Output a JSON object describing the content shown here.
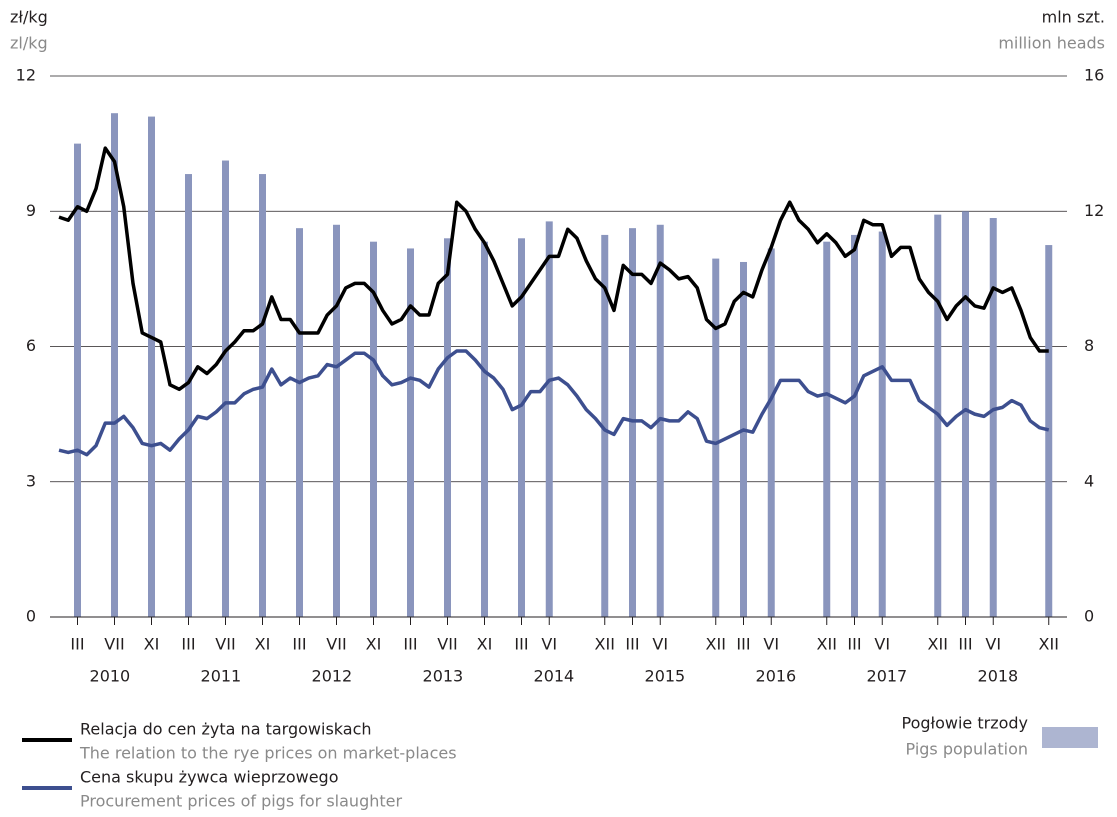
{
  "chart_data": {
    "type": "combo",
    "y_unit": "zł/kg",
    "y_unit_en": "zl/kg",
    "y2_unit": "mln szt.",
    "y2_unit_en": "million heads",
    "categories": [
      null,
      null,
      "III",
      null,
      null,
      null,
      "VII",
      null,
      null,
      null,
      "XI",
      null,
      null,
      null,
      "III",
      null,
      null,
      null,
      "VII",
      null,
      null,
      null,
      "XI",
      null,
      null,
      null,
      "III",
      null,
      null,
      null,
      "VII",
      null,
      null,
      null,
      "XI",
      null,
      null,
      null,
      "III",
      null,
      null,
      null,
      "VII",
      null,
      null,
      null,
      "XI",
      null,
      null,
      null,
      "III",
      null,
      null,
      "VI",
      null,
      null,
      null,
      null,
      null,
      "XII",
      null,
      null,
      "III",
      null,
      null,
      "VI",
      null,
      null,
      null,
      null,
      null,
      "XII",
      null,
      null,
      "III",
      null,
      null,
      "VI",
      null,
      null,
      null,
      null,
      null,
      "XII",
      null,
      null,
      "III",
      null,
      null,
      "VI",
      null,
      null,
      null,
      null,
      null,
      "XII",
      null,
      null,
      "III",
      null,
      null,
      "VI",
      null,
      null,
      null,
      null,
      null,
      "XII"
    ],
    "years": [
      "2010",
      "2011",
      "2012",
      "2013",
      "2014",
      "2015",
      "2016",
      "2017",
      "2018"
    ],
    "ylim": [
      0,
      12
    ],
    "yticks": [
      0,
      3,
      6,
      9,
      12
    ],
    "y2lim": [
      0,
      16
    ],
    "y2ticks": [
      0,
      4,
      8,
      12,
      16
    ],
    "grid": true,
    "series": [
      {
        "name": "Pogłowie trzody",
        "name_en": "Pigs population",
        "type": "bar",
        "axis": "y2",
        "color": "#8a95bd",
        "values": [
          null,
          null,
          14.0,
          null,
          null,
          null,
          14.9,
          null,
          null,
          null,
          14.8,
          null,
          null,
          null,
          13.1,
          null,
          null,
          null,
          13.5,
          null,
          null,
          null,
          13.1,
          null,
          null,
          null,
          11.5,
          null,
          null,
          null,
          11.6,
          null,
          null,
          null,
          11.1,
          null,
          null,
          null,
          10.9,
          null,
          null,
          null,
          11.2,
          null,
          null,
          null,
          11.1,
          null,
          null,
          null,
          11.2,
          null,
          null,
          11.7,
          null,
          null,
          null,
          null,
          null,
          11.3,
          null,
          null,
          11.5,
          null,
          null,
          11.6,
          null,
          null,
          null,
          null,
          null,
          10.6,
          null,
          null,
          10.5,
          null,
          null,
          10.9,
          null,
          null,
          null,
          null,
          null,
          11.1,
          null,
          null,
          11.3,
          null,
          null,
          11.4,
          null,
          null,
          null,
          null,
          null,
          11.9,
          null,
          null,
          12.0,
          null,
          null,
          11.8,
          null,
          null,
          null,
          null,
          null,
          11.0
        ]
      },
      {
        "name": "Relacja do cen żyta na targowiskach",
        "name_en": "The relation to the rye prices on market-places",
        "type": "line",
        "color": "#000000",
        "values": [
          8.87,
          8.8,
          9.1,
          9.0,
          9.5,
          10.4,
          10.1,
          9.1,
          7.4,
          6.3,
          6.2,
          6.1,
          5.15,
          5.05,
          5.2,
          5.55,
          5.4,
          5.6,
          5.9,
          6.1,
          6.35,
          6.35,
          6.5,
          7.1,
          6.6,
          6.6,
          6.3,
          6.3,
          6.3,
          6.7,
          6.9,
          7.3,
          7.4,
          7.4,
          7.2,
          6.8,
          6.5,
          6.6,
          6.9,
          6.7,
          6.7,
          7.4,
          7.6,
          9.2,
          9.0,
          8.6,
          8.3,
          7.9,
          7.4,
          6.9,
          7.1,
          7.4,
          7.7,
          8.0,
          8.0,
          8.6,
          8.4,
          7.9,
          7.5,
          7.3,
          6.8,
          7.8,
          7.6,
          7.6,
          7.4,
          7.85,
          7.7,
          7.5,
          7.55,
          7.3,
          6.6,
          6.4,
          6.5,
          7.0,
          7.2,
          7.1,
          7.7,
          8.2,
          8.8,
          9.2,
          8.8,
          8.6,
          8.3,
          8.5,
          8.3,
          8.0,
          8.15,
          8.8,
          8.7,
          8.7,
          8.0,
          8.2,
          8.2,
          7.5,
          7.2,
          7.0,
          6.6,
          6.9,
          7.1,
          6.9,
          6.85,
          7.3,
          7.2,
          7.3,
          6.8,
          6.2,
          5.9,
          5.9
        ]
      },
      {
        "name": "Cena skupu żywca wieprzowego",
        "name_en": "Procurement prices of pigs for slaughter",
        "type": "line",
        "color": "#3d4f8f",
        "values": [
          3.7,
          3.65,
          3.7,
          3.6,
          3.8,
          4.3,
          4.3,
          4.45,
          4.2,
          3.85,
          3.8,
          3.85,
          3.7,
          3.95,
          4.15,
          4.45,
          4.4,
          4.55,
          4.75,
          4.75,
          4.95,
          5.05,
          5.1,
          5.5,
          5.15,
          5.3,
          5.2,
          5.3,
          5.35,
          5.6,
          5.55,
          5.7,
          5.85,
          5.85,
          5.7,
          5.35,
          5.15,
          5.2,
          5.3,
          5.25,
          5.1,
          5.5,
          5.75,
          5.9,
          5.9,
          5.7,
          5.45,
          5.3,
          5.05,
          4.6,
          4.7,
          5.0,
          5.0,
          5.25,
          5.3,
          5.15,
          4.9,
          4.6,
          4.4,
          4.15,
          4.05,
          4.4,
          4.35,
          4.35,
          4.2,
          4.4,
          4.35,
          4.35,
          4.55,
          4.4,
          3.9,
          3.85,
          3.95,
          4.05,
          4.15,
          4.1,
          4.5,
          4.85,
          5.25,
          5.25,
          5.25,
          5.0,
          4.9,
          4.95,
          4.85,
          4.75,
          4.9,
          5.35,
          5.45,
          5.55,
          5.25,
          5.25,
          5.25,
          4.8,
          4.65,
          4.5,
          4.25,
          4.45,
          4.6,
          4.5,
          4.45,
          4.6,
          4.65,
          4.8,
          4.7,
          4.35,
          4.2,
          4.15
        ]
      }
    ]
  }
}
